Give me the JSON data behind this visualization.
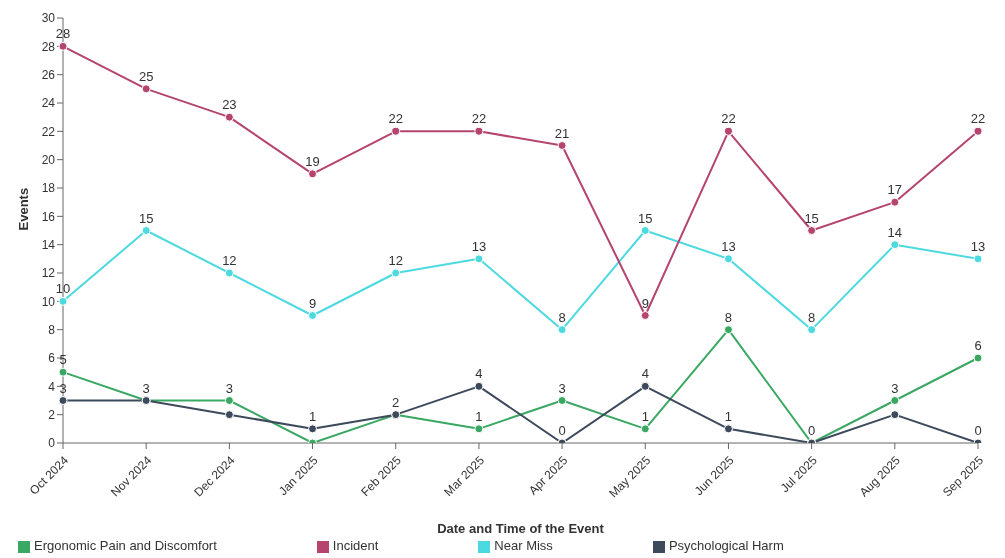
{
  "chart_data": {
    "type": "line",
    "xlabel": "Date and Time of the Event",
    "ylabel": "Events",
    "categories": [
      "Oct 2024",
      "Nov 2024",
      "Dec 2024",
      "Jan 2025",
      "Feb 2025",
      "Mar 2025",
      "Apr 2025",
      "May 2025",
      "Jun 2025",
      "Jul 2025",
      "Aug 2025",
      "Sep 2025"
    ],
    "series": [
      {
        "name": "Ergonomic Pain and Discomfort",
        "color": "#3aa862",
        "values": [
          5,
          3,
          3,
          0,
          2,
          1,
          3,
          1,
          8,
          0,
          3,
          6
        ],
        "value_labels": [
          "5",
          "3",
          "3",
          null,
          "2",
          "1",
          "3",
          "1",
          "8",
          "0",
          "3",
          "6"
        ]
      },
      {
        "name": "Near Miss",
        "color": "#4dd9e0",
        "values": [
          10,
          15,
          12,
          9,
          12,
          13,
          8,
          15,
          13,
          8,
          14,
          13
        ],
        "value_labels": [
          "10",
          "15",
          "12",
          "9",
          "12",
          "13",
          "8",
          "15",
          "13",
          "8",
          "14",
          "13"
        ]
      },
      {
        "name": "Psychological Harm",
        "color": "#3d4a5c",
        "values": [
          3,
          3,
          2,
          1,
          2,
          4,
          0,
          4,
          1,
          0,
          2,
          0
        ],
        "value_labels": [
          "3",
          null,
          null,
          "1",
          null,
          "4",
          "0",
          "4",
          "1",
          null,
          null,
          "0"
        ]
      },
      {
        "name": "Incident",
        "color": "#b5446e",
        "values": [
          28,
          25,
          23,
          19,
          22,
          22,
          21,
          9,
          22,
          15,
          17,
          22
        ],
        "value_labels": [
          "28",
          "25",
          "23",
          "19",
          "22",
          "22",
          "21",
          "9",
          "22",
          "15",
          "17",
          "22"
        ]
      }
    ],
    "ylim": [
      0,
      30
    ],
    "yticks": [
      0,
      2,
      4,
      6,
      8,
      10,
      12,
      14,
      16,
      18,
      20,
      22,
      24,
      26,
      28,
      30
    ],
    "grid": false,
    "legend": "bottom",
    "marker": "circle",
    "line_style": "solid"
  }
}
